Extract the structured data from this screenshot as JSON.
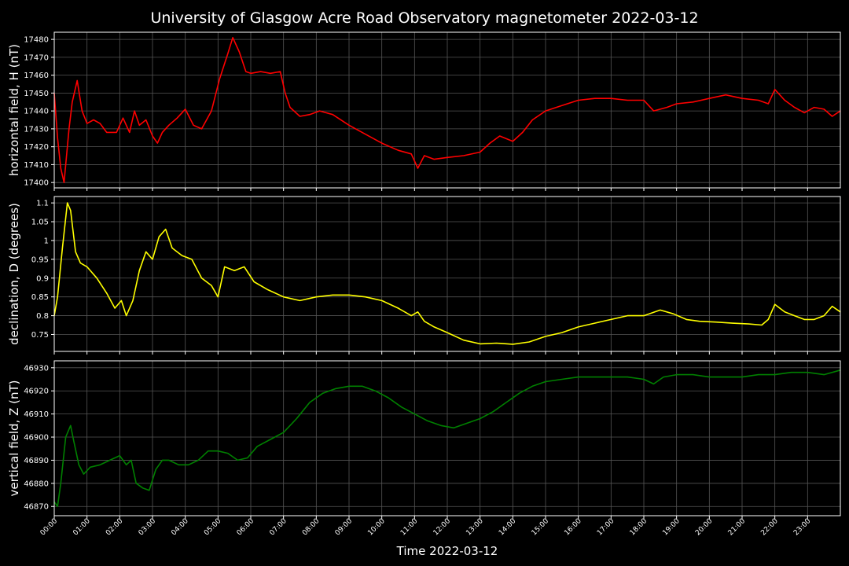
{
  "title": "University of Glasgow Acre Road Observatory magnetometer 2022-03-12",
  "xlabel": "Time 2022-03-12",
  "x_ticks": [
    "00:00",
    "01:00",
    "02:00",
    "03:00",
    "04:00",
    "05:00",
    "06:00",
    "07:00",
    "08:00",
    "09:00",
    "10:00",
    "11:00",
    "12:00",
    "13:00",
    "14:00",
    "15:00",
    "16:00",
    "17:00",
    "18:00",
    "19:00",
    "20:00",
    "21:00",
    "22:00",
    "23:00"
  ],
  "chart_data": [
    {
      "type": "line",
      "ylabel": "horizontal field, H (nT)",
      "color": "#ff0000",
      "grid": true,
      "xlim": [
        0,
        24
      ],
      "ylim": [
        17397,
        17484
      ],
      "yticks": [
        17400,
        17410,
        17420,
        17430,
        17440,
        17450,
        17460,
        17470,
        17480
      ],
      "series": [
        {
          "x": [
            0,
            0.1,
            0.2,
            0.3,
            0.45,
            0.55,
            0.7,
            0.85,
            1.0,
            1.2,
            1.4,
            1.6,
            1.9,
            2.1,
            2.3,
            2.45,
            2.6,
            2.8,
            3.0,
            3.15,
            3.3,
            3.5,
            3.75,
            4.0,
            4.25,
            4.5,
            4.8,
            5.05,
            5.3,
            5.45,
            5.65,
            5.85,
            6.0,
            6.3,
            6.6,
            6.9,
            7.05,
            7.2,
            7.5,
            7.8,
            8.1,
            8.5,
            9.0,
            9.5,
            10.0,
            10.5,
            10.9,
            11.1,
            11.3,
            11.6,
            12.0,
            12.5,
            13.0,
            13.3,
            13.6,
            14.0,
            14.3,
            14.6,
            15.0,
            15.5,
            16.0,
            16.5,
            17.0,
            17.5,
            18.0,
            18.3,
            18.7,
            19.0,
            19.5,
            20.0,
            20.5,
            21.0,
            21.5,
            21.8,
            22.0,
            22.3,
            22.6,
            22.9,
            23.2,
            23.5,
            23.75,
            24.0
          ],
          "y": [
            17450,
            17425,
            17408,
            17400,
            17430,
            17445,
            17457,
            17440,
            17433,
            17435,
            17433,
            17428,
            17428,
            17436,
            17428,
            17440,
            17432,
            17435,
            17426,
            17422,
            17428,
            17432,
            17436,
            17441,
            17432,
            17430,
            17440,
            17458,
            17472,
            17481,
            17473,
            17462,
            17461,
            17462,
            17461,
            17462,
            17450,
            17442,
            17437,
            17438,
            17440,
            17438,
            17432,
            17427,
            17422,
            17418,
            17416,
            17408,
            17415,
            17413,
            17414,
            17415,
            17417,
            17422,
            17426,
            17423,
            17428,
            17435,
            17440,
            17443,
            17446,
            17447,
            17447,
            17446,
            17446,
            17440,
            17442,
            17444,
            17445,
            17447,
            17449,
            17447,
            17446,
            17444,
            17452,
            17446,
            17442,
            17439,
            17442,
            17441,
            17437,
            17440
          ]
        }
      ]
    },
    {
      "type": "line",
      "ylabel": "declination, D (degrees)",
      "color": "#ffff00",
      "grid": true,
      "xlim": [
        0,
        24
      ],
      "ylim": [
        0.705,
        1.117
      ],
      "yticks": [
        0.75,
        0.8,
        0.85,
        0.9,
        0.95,
        1.0,
        1.05,
        1.1
      ],
      "series": [
        {
          "x": [
            0,
            0.1,
            0.25,
            0.4,
            0.5,
            0.65,
            0.8,
            1.0,
            1.3,
            1.6,
            1.85,
            2.05,
            2.2,
            2.4,
            2.6,
            2.8,
            3.0,
            3.2,
            3.4,
            3.6,
            3.9,
            4.2,
            4.5,
            4.8,
            5.0,
            5.2,
            5.5,
            5.8,
            6.1,
            6.5,
            7.0,
            7.5,
            8.0,
            8.5,
            9.0,
            9.5,
            10.0,
            10.5,
            10.9,
            11.1,
            11.3,
            11.6,
            12.0,
            12.5,
            13.0,
            13.5,
            14.0,
            14.5,
            15.0,
            15.5,
            16.0,
            16.5,
            17.0,
            17.5,
            18.0,
            18.5,
            18.9,
            19.3,
            19.7,
            20.2,
            20.7,
            21.2,
            21.6,
            21.8,
            22.0,
            22.3,
            22.6,
            22.9,
            23.2,
            23.5,
            23.75,
            24.0
          ],
          "y": [
            0.8,
            0.85,
            0.98,
            1.1,
            1.08,
            0.97,
            0.94,
            0.93,
            0.9,
            0.86,
            0.82,
            0.84,
            0.8,
            0.84,
            0.92,
            0.97,
            0.95,
            1.01,
            1.03,
            0.98,
            0.96,
            0.95,
            0.9,
            0.88,
            0.85,
            0.93,
            0.92,
            0.93,
            0.89,
            0.87,
            0.85,
            0.84,
            0.85,
            0.855,
            0.855,
            0.85,
            0.84,
            0.82,
            0.8,
            0.81,
            0.785,
            0.77,
            0.755,
            0.735,
            0.725,
            0.727,
            0.724,
            0.73,
            0.745,
            0.755,
            0.77,
            0.78,
            0.79,
            0.8,
            0.8,
            0.815,
            0.805,
            0.79,
            0.785,
            0.783,
            0.78,
            0.778,
            0.775,
            0.79,
            0.83,
            0.81,
            0.8,
            0.79,
            0.79,
            0.8,
            0.825,
            0.81
          ]
        }
      ]
    },
    {
      "type": "line",
      "ylabel": "vertical field, Z (nT)",
      "color": "#008000",
      "grid": true,
      "xlim": [
        0,
        24
      ],
      "ylim": [
        46866,
        46933
      ],
      "yticks": [
        46870,
        46880,
        46890,
        46900,
        46910,
        46920,
        46930
      ],
      "series": [
        {
          "x": [
            0,
            0.1,
            0.2,
            0.35,
            0.5,
            0.6,
            0.75,
            0.9,
            1.1,
            1.4,
            1.7,
            2.0,
            2.2,
            2.35,
            2.5,
            2.7,
            2.9,
            3.1,
            3.3,
            3.5,
            3.8,
            4.1,
            4.4,
            4.7,
            5.0,
            5.3,
            5.6,
            5.9,
            6.2,
            6.6,
            7.0,
            7.4,
            7.8,
            8.2,
            8.6,
            9.0,
            9.4,
            9.8,
            10.2,
            10.6,
            11.0,
            11.4,
            11.8,
            12.2,
            12.6,
            13.0,
            13.4,
            13.8,
            14.2,
            14.6,
            15.0,
            15.5,
            16.0,
            16.5,
            17.0,
            17.5,
            18.0,
            18.3,
            18.6,
            19.0,
            19.5,
            20.0,
            20.5,
            21.0,
            21.5,
            22.0,
            22.5,
            23.0,
            23.5,
            24.0
          ],
          "y": [
            46872,
            46870,
            46880,
            46900,
            46905,
            46898,
            46888,
            46884,
            46887,
            46888,
            46890,
            46892,
            46888,
            46890,
            46880,
            46878,
            46877,
            46886,
            46890,
            46890,
            46888,
            46888,
            46890,
            46894,
            46894,
            46893,
            46890,
            46891,
            46896,
            46899,
            46902,
            46908,
            46915,
            46919,
            46921,
            46922,
            46922,
            46920,
            46917,
            46913,
            46910,
            46907,
            46905,
            46904,
            46906,
            46908,
            46911,
            46915,
            46919,
            46922,
            46924,
            46925,
            46926,
            46926,
            46926,
            46926,
            46925,
            46923,
            46926,
            46927,
            46927,
            46926,
            46926,
            46926,
            46927,
            46927,
            46928,
            46928,
            46927,
            46929
          ]
        }
      ]
    }
  ]
}
